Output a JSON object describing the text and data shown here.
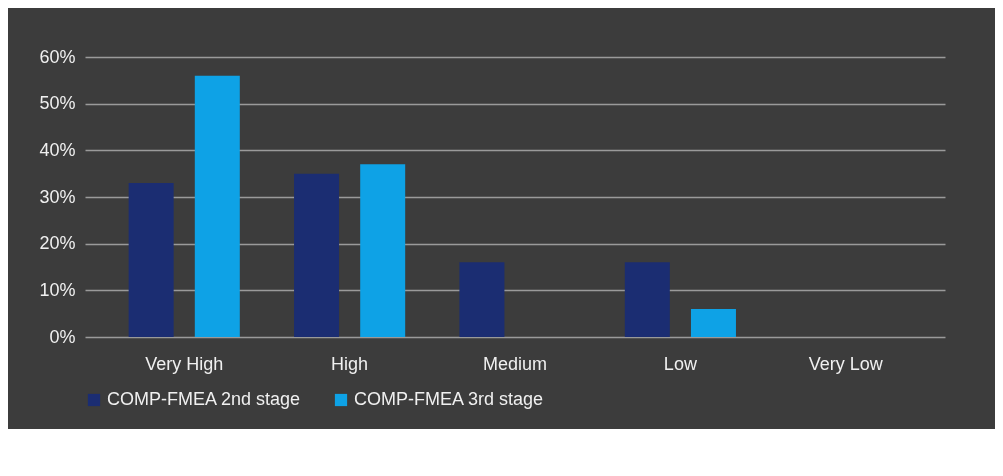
{
  "chart_data": {
    "type": "bar",
    "categories": [
      "Very High",
      "High",
      "Medium",
      "Low",
      "Very Low"
    ],
    "series": [
      {
        "name": "COMP-FMEA 2nd stage",
        "color": "#1b2d72",
        "values": [
          33,
          35,
          16,
          16,
          0
        ]
      },
      {
        "name": "COMP-FMEA 3rd stage",
        "color": "#0ea2e6",
        "values": [
          56,
          37,
          0,
          6,
          0
        ]
      }
    ],
    "ylim": [
      0,
      60
    ],
    "yticks": [
      {
        "value": 0,
        "label": "0%"
      },
      {
        "value": 10,
        "label": "10%"
      },
      {
        "value": 20,
        "label": "20%"
      },
      {
        "value": 30,
        "label": "30%"
      },
      {
        "value": 40,
        "label": "40%"
      },
      {
        "value": 50,
        "label": "50%"
      },
      {
        "value": 60,
        "label": "60%"
      }
    ],
    "grid": "y",
    "legend": "bottom"
  }
}
